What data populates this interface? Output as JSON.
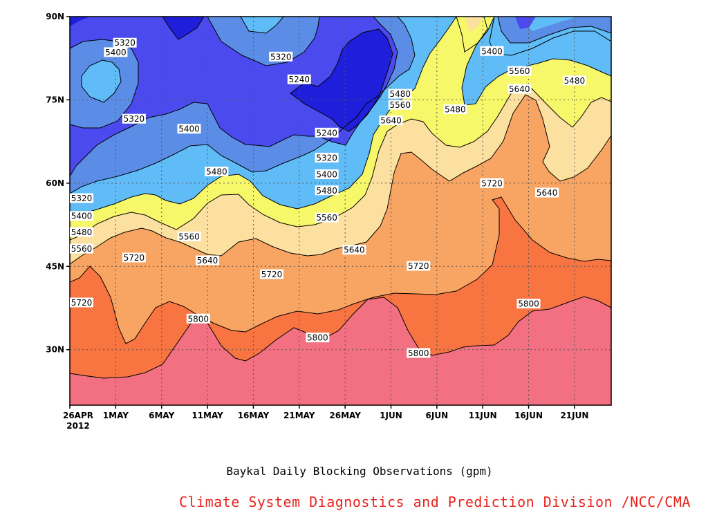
{
  "chart_data": {
    "type": "heatmap",
    "subtype": "filled-contour",
    "xlabel": "",
    "ylabel": "",
    "x_tick_labels": [
      "26APR",
      "1MAY",
      "6MAY",
      "11MAY",
      "16MAY",
      "21MAY",
      "26MAY",
      "1JUN",
      "6JUN",
      "11JUN",
      "16JUN",
      "21JUN"
    ],
    "x_tick_year": "2012",
    "x_range": [
      "2012-04-26",
      "2012-06-24"
    ],
    "y_tick_labels": [
      "30N",
      "45N",
      "60N",
      "75N",
      "90N"
    ],
    "y_ticks": [
      30,
      45,
      60,
      75,
      90
    ],
    "y_range": [
      20,
      90
    ],
    "contour_levels": [
      5240,
      5320,
      5400,
      5480,
      5560,
      5640,
      5720,
      5800
    ],
    "fill_colors": [
      "#1e1edb",
      "#4a4aee",
      "#5b8de6",
      "#5fbcf7",
      "#f7f76a",
      "#fbe0a0",
      "#f8a462",
      "#f87440",
      "#f27082"
    ],
    "grid": true,
    "contour_labels": [
      {
        "text": "5320",
        "date": "2012-05-02",
        "lat": 85.3
      },
      {
        "text": "5400",
        "date": "2012-05-01",
        "lat": 83.6
      },
      {
        "text": "5320",
        "date": "2012-05-03",
        "lat": 71.6
      },
      {
        "text": "5400",
        "date": "2012-05-09",
        "lat": 69.8
      },
      {
        "text": "5320",
        "date": "2012-05-19",
        "lat": 82.8
      },
      {
        "text": "5240",
        "date": "2012-05-21",
        "lat": 78.7
      },
      {
        "text": "5240",
        "date": "2012-05-24",
        "lat": 69.1
      },
      {
        "text": "5320",
        "date": "2012-05-24",
        "lat": 64.6
      },
      {
        "text": "5400",
        "date": "2012-05-24",
        "lat": 61.6
      },
      {
        "text": "5480",
        "date": "2012-05-24",
        "lat": 58.7
      },
      {
        "text": "5560",
        "date": "2012-05-24",
        "lat": 53.8
      },
      {
        "text": "5640",
        "date": "2012-05-27",
        "lat": 48.0
      },
      {
        "text": "5480",
        "date": "2012-05-12",
        "lat": 62.1
      },
      {
        "text": "5560",
        "date": "2012-05-09",
        "lat": 50.4
      },
      {
        "text": "5640",
        "date": "2012-05-11",
        "lat": 46.1
      },
      {
        "text": "5720",
        "date": "2012-05-03",
        "lat": 46.6
      },
      {
        "text": "5720",
        "date": "2012-05-18",
        "lat": 43.6
      },
      {
        "text": "5720",
        "date": "2012-06-03",
        "lat": 45.1
      },
      {
        "text": "5800",
        "date": "2012-05-10",
        "lat": 35.6
      },
      {
        "text": "5800",
        "date": "2012-05-23",
        "lat": 32.2
      },
      {
        "text": "5800",
        "date": "2012-06-03",
        "lat": 29.4
      },
      {
        "text": "5800",
        "date": "2012-06-15",
        "lat": 38.3
      },
      {
        "text": "5720",
        "date": "2012-04-26",
        "lat": 38.5
      },
      {
        "text": "5320",
        "date": "2012-04-26",
        "lat": 57.3
      },
      {
        "text": "5400",
        "date": "2012-04-26",
        "lat": 54.1
      },
      {
        "text": "5480",
        "date": "2012-04-26",
        "lat": 51.2
      },
      {
        "text": "5560",
        "date": "2012-04-26",
        "lat": 48.2
      },
      {
        "text": "5480",
        "date": "2012-06-01",
        "lat": 76.1
      },
      {
        "text": "5560",
        "date": "2012-06-01",
        "lat": 74.1
      },
      {
        "text": "5640",
        "date": "2012-05-31",
        "lat": 71.3
      },
      {
        "text": "5480",
        "date": "2012-06-07",
        "lat": 73.3
      },
      {
        "text": "5400",
        "date": "2012-06-11",
        "lat": 83.8
      },
      {
        "text": "5560",
        "date": "2012-06-14",
        "lat": 80.2
      },
      {
        "text": "5640",
        "date": "2012-06-14",
        "lat": 77.0
      },
      {
        "text": "5480",
        "date": "2012-06-20",
        "lat": 78.5
      },
      {
        "text": "5720",
        "date": "2012-06-11",
        "lat": 60.0
      },
      {
        "text": "5640",
        "date": "2012-06-17",
        "lat": 58.3
      }
    ]
  },
  "caption": "Baykal Daily Blocking Observations (gpm)",
  "credit": "Climate System Diagnostics and Prediction Division /NCC/CMA",
  "colors": {
    "credit": "#e8231d",
    "frame": "#000000",
    "grid": "#555555"
  }
}
